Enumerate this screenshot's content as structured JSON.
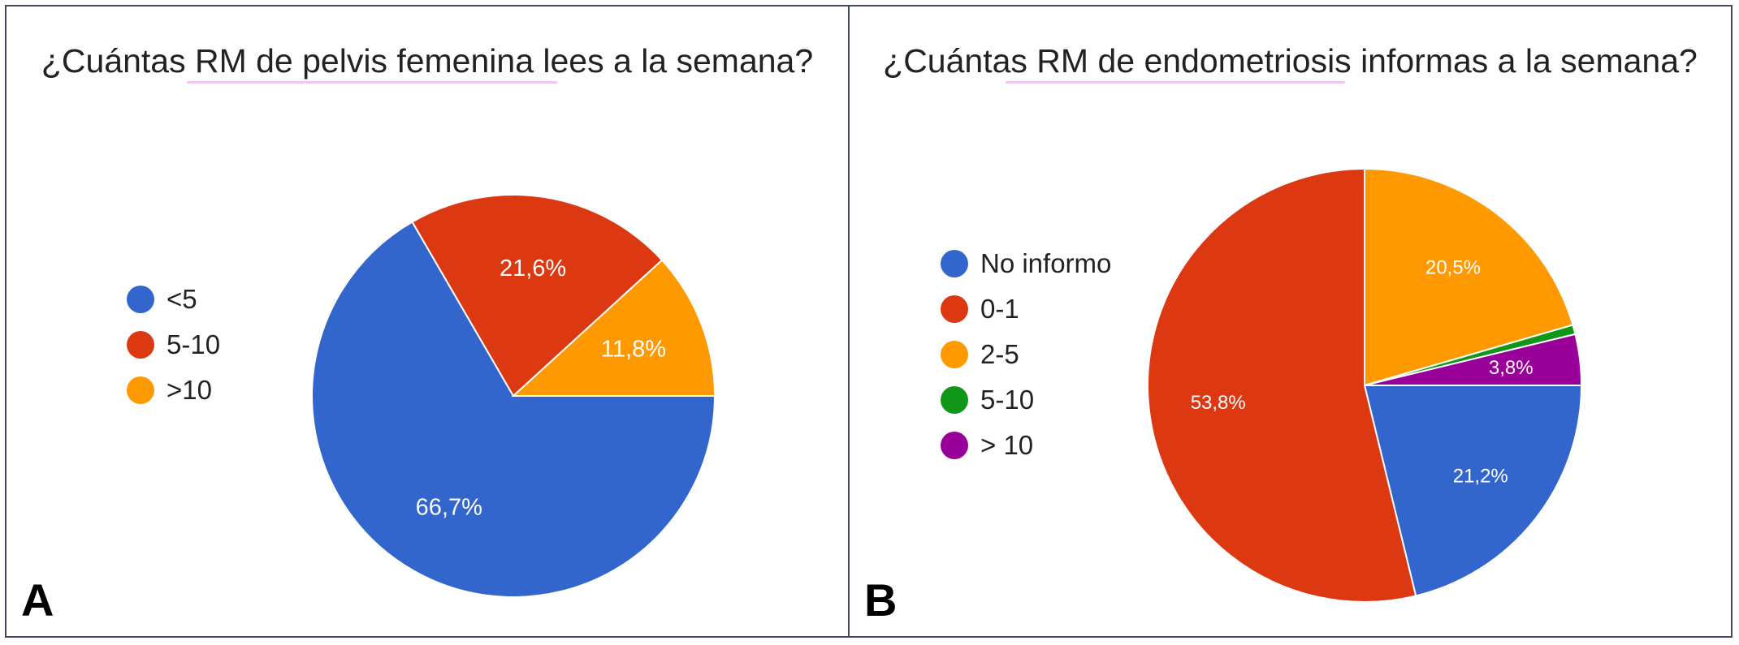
{
  "chart_data": [
    {
      "panel": "A",
      "type": "pie",
      "title": "¿Cuántas RM de pelvis femenina lees a la semana?",
      "slices": [
        {
          "label": "<5",
          "value": 66.7,
          "value_label": "66,7%",
          "color": "#3366cc"
        },
        {
          "label": "5-10",
          "value": 21.6,
          "value_label": "21,6%",
          "color": "#dc3912"
        },
        {
          "label": ">10",
          "value": 11.8,
          "value_label": "11,8%",
          "color": "#ff9900"
        }
      ],
      "legend_position": "left"
    },
    {
      "panel": "B",
      "type": "pie",
      "title": "¿Cuántas RM de endometriosis informas a la semana?",
      "slices": [
        {
          "label": "No informo",
          "value": 21.2,
          "value_label": "21,2%",
          "color": "#3366cc"
        },
        {
          "label": "0-1",
          "value": 53.8,
          "value_label": "53,8%",
          "color": "#dc3912"
        },
        {
          "label": "2-5",
          "value": 20.5,
          "value_label": "20,5%",
          "color": "#ff9900"
        },
        {
          "label": "5-10",
          "value": 0.7,
          "value_label": "",
          "color": "#109618"
        },
        {
          "label": "> 10",
          "value": 3.8,
          "value_label": "3,8%",
          "color": "#990099"
        }
      ],
      "legend_position": "left"
    }
  ]
}
